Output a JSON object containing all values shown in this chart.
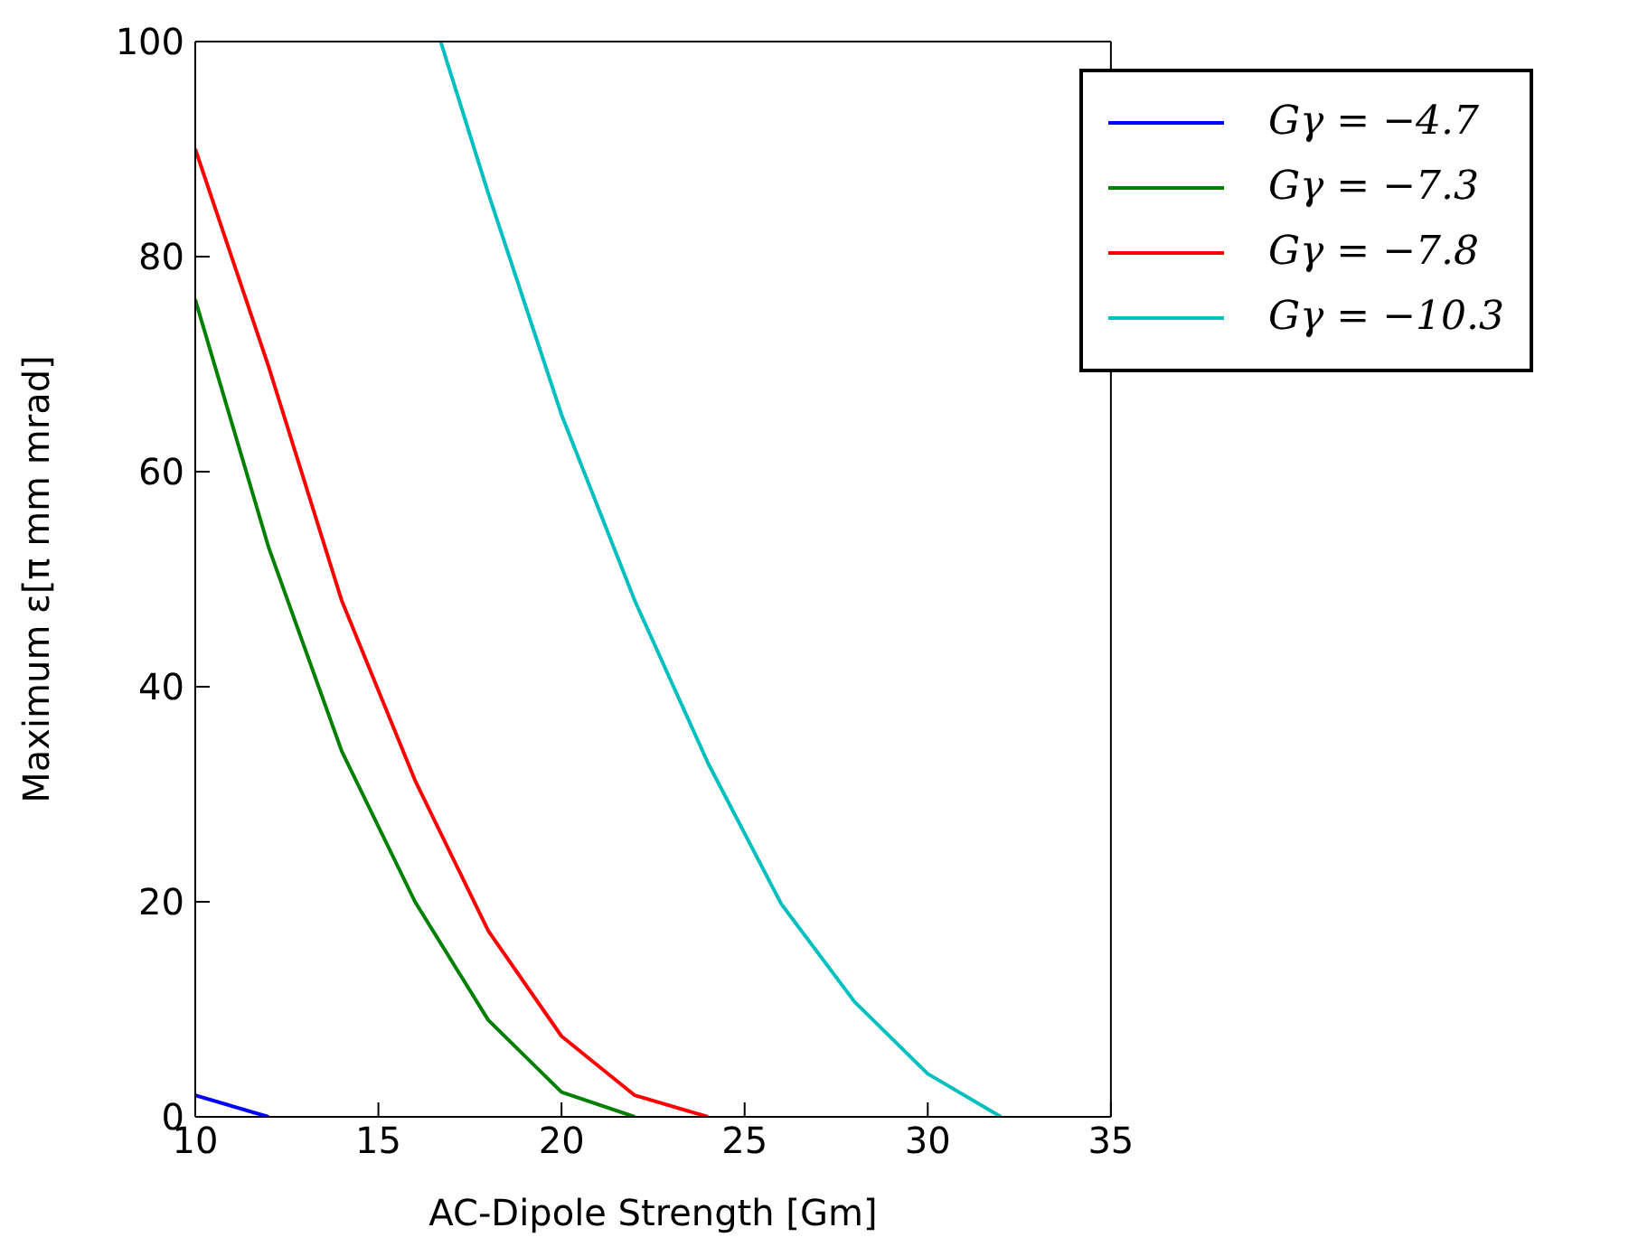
{
  "chart_data": {
    "type": "line",
    "xlabel": "AC-Dipole Strength [Gm]",
    "ylabel": "Maximum ε[π mm mrad]",
    "x": [
      10,
      12,
      14,
      16,
      18,
      20,
      22,
      24
    ],
    "series": [
      {
        "name": "Gγ = −4.7",
        "color": "#0000ff",
        "values": [
          2,
          0,
          null,
          null,
          null,
          null,
          null,
          null
        ]
      },
      {
        "name": "Gγ = −7.3",
        "color": "#008000",
        "values": [
          76,
          53,
          34,
          20,
          9,
          2.3,
          0,
          null
        ]
      },
      {
        "name": "Gγ = −7.8",
        "color": "#ff0000",
        "values": [
          90,
          69.8,
          48,
          31.3,
          17.3,
          7.5,
          2,
          0
        ]
      },
      {
        "name": "Gγ = −10.3",
        "color": "#00bfbf",
        "x": [
          16.7,
          18,
          20,
          22,
          24,
          26,
          28,
          30,
          32
        ],
        "values": [
          100,
          85.9,
          65.3,
          48,
          32.9,
          19.8,
          10.7,
          4,
          0
        ]
      }
    ],
    "xlim": [
      10,
      35
    ],
    "xticks": [
      10,
      15,
      20,
      25,
      30,
      35
    ],
    "ylim": [
      0,
      100
    ],
    "yticks": [
      0,
      20,
      40,
      60,
      80,
      100
    ],
    "grid": false,
    "legend": "top right",
    "marker": "none",
    "line_style": "solid"
  }
}
